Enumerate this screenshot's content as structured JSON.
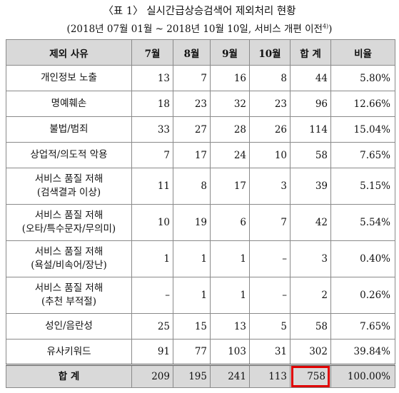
{
  "doc": {
    "title": "〈표 1〉 실시간급상승검색어 제외처리 현황",
    "subtitle": "(2018년 07월 01월 ~ 2018년 10월 10일, 서비스 개편 이전",
    "subtitle_footnote": "4)",
    "subtitle_close": ")"
  },
  "table": {
    "headers": [
      "제외 사유",
      "7월",
      "8월",
      "9월",
      "10월",
      "합  계",
      "비율"
    ],
    "rows": [
      {
        "reason": [
          "개인정보 노출"
        ],
        "m7": "13",
        "m8": "7",
        "m9": "16",
        "m10": "8",
        "total": "44",
        "ratio": "5.80%"
      },
      {
        "reason": [
          "명예훼손"
        ],
        "m7": "18",
        "m8": "23",
        "m9": "32",
        "m10": "23",
        "total": "96",
        "ratio": "12.66%"
      },
      {
        "reason": [
          "불법/범죄"
        ],
        "m7": "33",
        "m8": "27",
        "m9": "28",
        "m10": "26",
        "total": "114",
        "ratio": "15.04%"
      },
      {
        "reason": [
          "상업적/의도적 악용"
        ],
        "m7": "7",
        "m8": "17",
        "m9": "24",
        "m10": "10",
        "total": "58",
        "ratio": "7.65%"
      },
      {
        "reason": [
          "서비스 품질 저해",
          "(검색결과  이상)"
        ],
        "m7": "11",
        "m8": "8",
        "m9": "17",
        "m10": "3",
        "total": "39",
        "ratio": "5.15%"
      },
      {
        "reason": [
          "서비스 품질 저해",
          "(오타/특수문자/무의미)"
        ],
        "m7": "10",
        "m8": "19",
        "m9": "6",
        "m10": "7",
        "total": "42",
        "ratio": "5.54%"
      },
      {
        "reason": [
          "서비스 품질 저해",
          "(욕설/비속어/장난)"
        ],
        "m7": "1",
        "m8": "1",
        "m9": "1",
        "m10": "–",
        "total": "3",
        "ratio": "0.40%"
      },
      {
        "reason": [
          "서비스 품질 저해",
          "(추천 부적절)"
        ],
        "m7": "–",
        "m8": "1",
        "m9": "1",
        "m10": "–",
        "total": "2",
        "ratio": "0.26%"
      },
      {
        "reason": [
          "성인/음란성"
        ],
        "m7": "25",
        "m8": "15",
        "m9": "13",
        "m10": "5",
        "total": "58",
        "ratio": "7.65%"
      },
      {
        "reason": [
          "유사키워드"
        ],
        "m7": "91",
        "m8": "77",
        "m9": "103",
        "m10": "31",
        "total": "302",
        "ratio": "39.84%"
      }
    ],
    "total_row": {
      "reason": "합  계",
      "m7": "209",
      "m8": "195",
      "m9": "241",
      "m10": "113",
      "total": "758",
      "ratio": "100.00%"
    }
  },
  "colors": {
    "header_bg": "#d9d9d9",
    "highlight": "#e00000",
    "border": "#8a8a8a"
  }
}
